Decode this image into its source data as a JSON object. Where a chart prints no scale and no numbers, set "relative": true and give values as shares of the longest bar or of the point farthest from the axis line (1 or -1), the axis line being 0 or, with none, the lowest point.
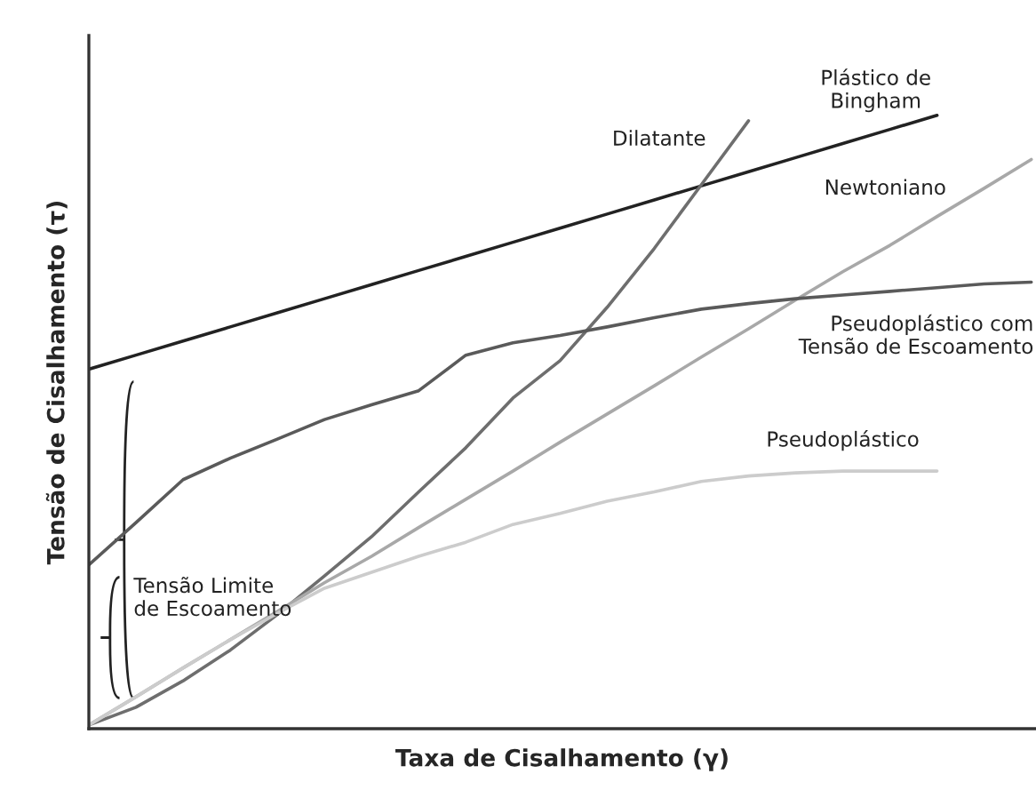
{
  "chart_data": {
    "type": "line",
    "relative": true,
    "xlabel": "Taxa de Cisalhamento (γ)",
    "ylabel": "Tensão de Cisalhamento (τ)",
    "categories": [
      null,
      null,
      null,
      null,
      null,
      null,
      null,
      null,
      null,
      null,
      null,
      null,
      null,
      null,
      null,
      null,
      null,
      null,
      null,
      null,
      null
    ],
    "series": [
      {
        "name": "Plástico de\nBingham",
        "color": "#222222",
        "values": [
          0.586,
          0.609,
          0.632,
          0.655,
          0.678,
          0.701,
          0.724,
          0.747,
          0.77,
          0.793,
          0.816,
          0.839,
          0.862,
          0.885,
          0.908,
          0.931,
          0.954,
          0.977,
          1.0,
          null,
          null
        ]
      },
      {
        "name": "Dilatante",
        "color": "#6e6e6e",
        "values": [
          0.006,
          0.035,
          0.078,
          0.128,
          0.186,
          0.249,
          0.313,
          0.386,
          0.458,
          0.539,
          0.6,
          0.687,
          0.783,
          0.887,
          0.991,
          null,
          null,
          null,
          null,
          null,
          null
        ]
      },
      {
        "name": "Newtoniano",
        "color": "#a8a8a8",
        "values": [
          0.006,
          0.052,
          0.099,
          0.145,
          0.191,
          0.238,
          0.281,
          0.328,
          0.374,
          0.42,
          0.467,
          0.513,
          0.559,
          0.606,
          0.652,
          0.699,
          0.745,
          0.788,
          0.835,
          0.881,
          0.928
        ]
      },
      {
        "name": "Pseudoplástico com\nTensão de Escoamento",
        "color": "#5a5a5a",
        "values": [
          0.267,
          0.336,
          0.406,
          0.441,
          0.472,
          0.504,
          0.528,
          0.551,
          0.609,
          0.629,
          0.641,
          0.655,
          0.67,
          0.684,
          0.693,
          0.701,
          0.707,
          0.713,
          0.719,
          0.725,
          0.728
        ]
      },
      {
        "name": "Pseudoplástico",
        "color": "#cccccc",
        "values": [
          0.006,
          0.052,
          0.099,
          0.145,
          0.188,
          0.229,
          0.255,
          0.281,
          0.304,
          0.333,
          0.351,
          0.371,
          0.386,
          0.403,
          0.412,
          0.417,
          0.42,
          0.42,
          0.42,
          null,
          null
        ]
      }
    ],
    "annotations": [
      "Tensão Limite\nde Escoamento"
    ],
    "legend": false,
    "marker": "none",
    "line_style": "solid"
  }
}
